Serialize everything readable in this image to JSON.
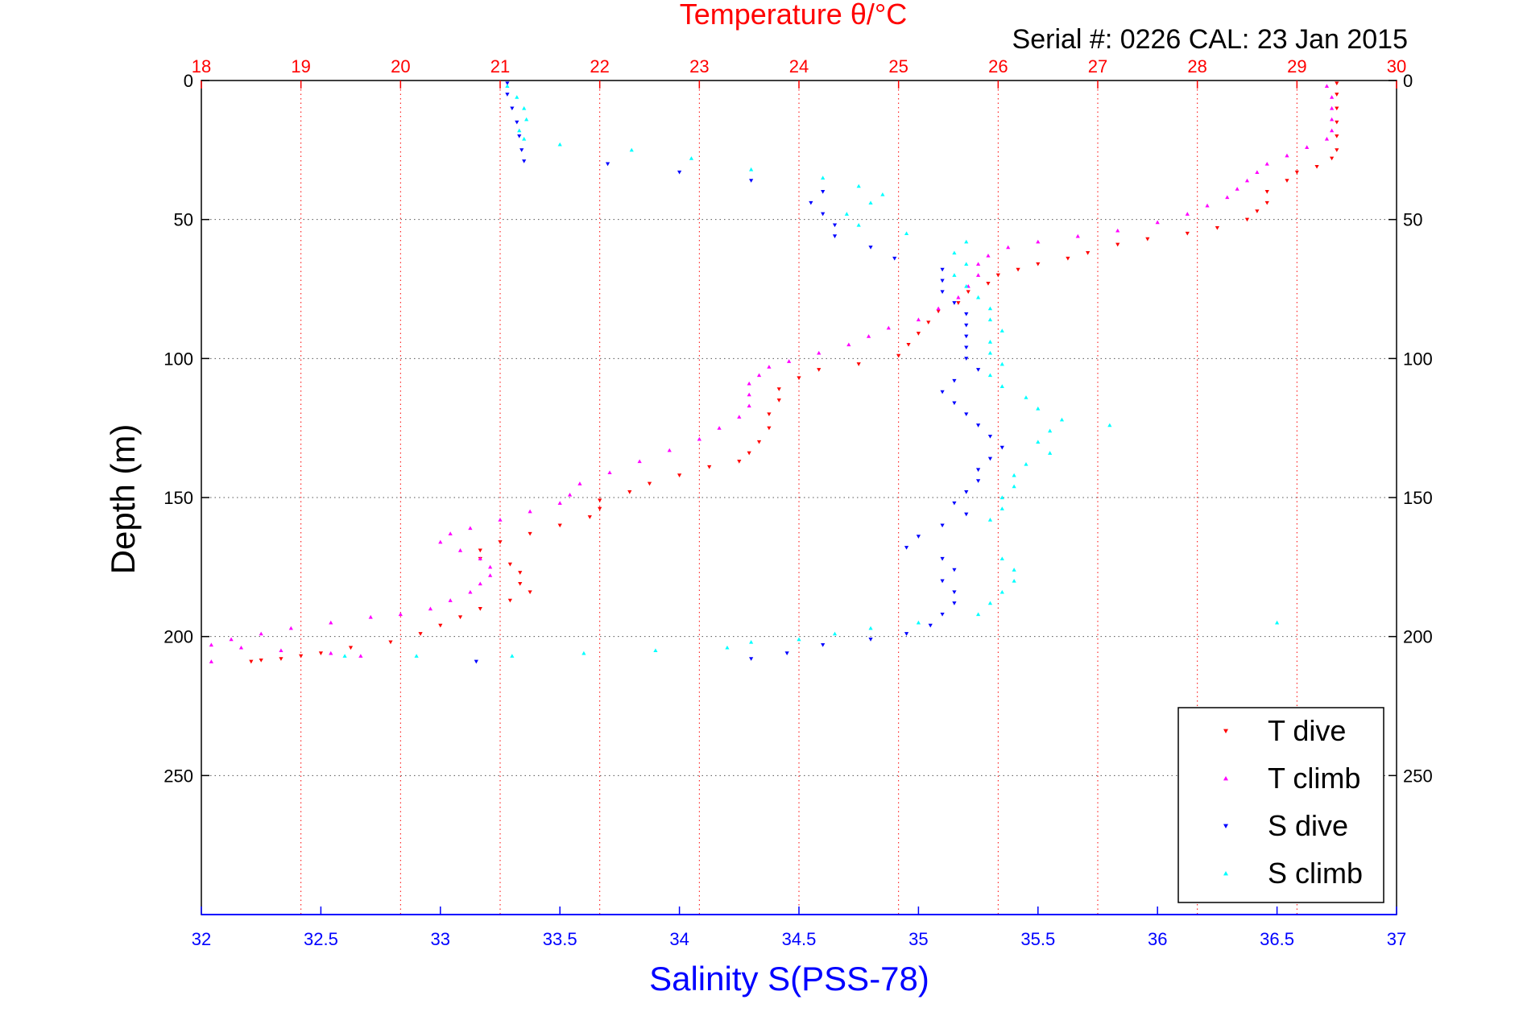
{
  "chart_data": {
    "type": "scatter",
    "title": "Temperature θ/°C",
    "subtitle": "Serial #: 0226  CAL: 23 Jan 2015",
    "ylabel": "Depth (m)",
    "x_top_label": "Temperature θ/°C",
    "x_bottom_label": "Salinity S(PSS-78)",
    "ylim": [
      0,
      300
    ],
    "y_reversed": true,
    "y_ticks": [
      0,
      50,
      100,
      150,
      200,
      250
    ],
    "temperature_lim": [
      18,
      30
    ],
    "temperature_ticks": [
      18,
      19,
      20,
      21,
      22,
      23,
      24,
      25,
      26,
      27,
      28,
      29,
      30
    ],
    "salinity_lim": [
      32,
      37
    ],
    "salinity_ticks": [
      32,
      32.5,
      33,
      33.5,
      34,
      34.5,
      35,
      35.5,
      36,
      36.5,
      37
    ],
    "grid": true,
    "legend_position": "bottom-right",
    "series": [
      {
        "name": "T dive",
        "axis": "temperature",
        "marker": "triangle-down",
        "color": "#ff0000",
        "points": [
          [
            29.4,
            1
          ],
          [
            29.4,
            5
          ],
          [
            29.4,
            10
          ],
          [
            29.4,
            15
          ],
          [
            29.4,
            20
          ],
          [
            29.4,
            25
          ],
          [
            29.35,
            28
          ],
          [
            29.2,
            31
          ],
          [
            29.0,
            33
          ],
          [
            28.9,
            36
          ],
          [
            28.7,
            40
          ],
          [
            28.7,
            44
          ],
          [
            28.6,
            47
          ],
          [
            28.5,
            50
          ],
          [
            28.2,
            53
          ],
          [
            27.9,
            55
          ],
          [
            27.5,
            57
          ],
          [
            27.2,
            59
          ],
          [
            26.9,
            62
          ],
          [
            26.7,
            64
          ],
          [
            26.4,
            66
          ],
          [
            26.2,
            68
          ],
          [
            26.0,
            70
          ],
          [
            25.9,
            73
          ],
          [
            25.7,
            76
          ],
          [
            25.6,
            80
          ],
          [
            25.4,
            83
          ],
          [
            25.3,
            87
          ],
          [
            25.2,
            91
          ],
          [
            25.1,
            95
          ],
          [
            25.0,
            99
          ],
          [
            24.6,
            102
          ],
          [
            24.2,
            104
          ],
          [
            24.0,
            107
          ],
          [
            23.8,
            111
          ],
          [
            23.8,
            115
          ],
          [
            23.7,
            120
          ],
          [
            23.7,
            125
          ],
          [
            23.6,
            130
          ],
          [
            23.5,
            134
          ],
          [
            23.4,
            137
          ],
          [
            23.1,
            139
          ],
          [
            22.8,
            142
          ],
          [
            22.5,
            145
          ],
          [
            22.3,
            148
          ],
          [
            22.0,
            151
          ],
          [
            22.0,
            154
          ],
          [
            21.9,
            157
          ],
          [
            21.6,
            160
          ],
          [
            21.3,
            163
          ],
          [
            21.0,
            166
          ],
          [
            20.8,
            169
          ],
          [
            20.8,
            172
          ],
          [
            21.1,
            174
          ],
          [
            21.2,
            177
          ],
          [
            21.2,
            181
          ],
          [
            21.3,
            184
          ],
          [
            21.1,
            187
          ],
          [
            20.8,
            190
          ],
          [
            20.6,
            193
          ],
          [
            20.4,
            196
          ],
          [
            20.2,
            199
          ],
          [
            19.9,
            202
          ],
          [
            19.5,
            204
          ],
          [
            19.2,
            206
          ],
          [
            19.0,
            207
          ],
          [
            18.8,
            208
          ],
          [
            18.6,
            208.5
          ],
          [
            18.5,
            209
          ]
        ]
      },
      {
        "name": "T climb",
        "axis": "temperature",
        "marker": "triangle-up",
        "color": "#ff00ff",
        "points": [
          [
            29.3,
            2
          ],
          [
            29.35,
            6
          ],
          [
            29.35,
            10
          ],
          [
            29.35,
            14
          ],
          [
            29.35,
            18
          ],
          [
            29.3,
            21
          ],
          [
            29.1,
            24
          ],
          [
            28.9,
            27
          ],
          [
            28.7,
            30
          ],
          [
            28.6,
            33
          ],
          [
            28.5,
            36
          ],
          [
            28.4,
            39
          ],
          [
            28.3,
            42
          ],
          [
            28.1,
            45
          ],
          [
            27.9,
            48
          ],
          [
            27.6,
            51
          ],
          [
            27.2,
            54
          ],
          [
            26.8,
            56
          ],
          [
            26.4,
            58
          ],
          [
            26.1,
            60
          ],
          [
            25.9,
            63
          ],
          [
            25.8,
            66
          ],
          [
            25.8,
            70
          ],
          [
            25.7,
            74
          ],
          [
            25.6,
            78
          ],
          [
            25.4,
            82
          ],
          [
            25.2,
            86
          ],
          [
            24.9,
            89
          ],
          [
            24.7,
            92
          ],
          [
            24.5,
            95
          ],
          [
            24.2,
            98
          ],
          [
            23.9,
            101
          ],
          [
            23.7,
            103
          ],
          [
            23.6,
            106
          ],
          [
            23.5,
            109
          ],
          [
            23.5,
            113
          ],
          [
            23.5,
            117
          ],
          [
            23.4,
            121
          ],
          [
            23.2,
            125
          ],
          [
            23.0,
            129
          ],
          [
            22.7,
            133
          ],
          [
            22.4,
            137
          ],
          [
            22.1,
            141
          ],
          [
            21.8,
            145
          ],
          [
            21.7,
            149
          ],
          [
            21.6,
            152
          ],
          [
            21.3,
            155
          ],
          [
            21.0,
            158
          ],
          [
            20.7,
            161
          ],
          [
            20.5,
            163
          ],
          [
            20.4,
            166
          ],
          [
            20.6,
            169
          ],
          [
            20.8,
            172
          ],
          [
            20.9,
            175
          ],
          [
            20.9,
            178
          ],
          [
            20.8,
            181
          ],
          [
            20.7,
            184
          ],
          [
            20.5,
            187
          ],
          [
            20.3,
            190
          ],
          [
            20.0,
            192
          ],
          [
            19.7,
            193
          ],
          [
            19.3,
            195
          ],
          [
            18.9,
            197
          ],
          [
            18.6,
            199
          ],
          [
            18.3,
            201
          ],
          [
            18.1,
            203
          ],
          [
            18.4,
            204
          ],
          [
            18.8,
            205
          ],
          [
            19.3,
            206
          ],
          [
            19.6,
            207
          ],
          [
            18.1,
            209
          ]
        ]
      },
      {
        "name": "S dive",
        "axis": "salinity",
        "marker": "triangle-down",
        "color": "#0000ff",
        "points": [
          [
            33.28,
            1
          ],
          [
            33.28,
            5
          ],
          [
            33.3,
            10
          ],
          [
            33.32,
            15
          ],
          [
            33.33,
            20
          ],
          [
            33.34,
            25
          ],
          [
            33.35,
            29
          ],
          [
            33.7,
            30
          ],
          [
            34.0,
            33
          ],
          [
            34.3,
            36
          ],
          [
            34.6,
            40
          ],
          [
            34.55,
            44
          ],
          [
            34.6,
            48
          ],
          [
            34.65,
            52
          ],
          [
            34.65,
            56
          ],
          [
            34.8,
            60
          ],
          [
            34.9,
            64
          ],
          [
            35.1,
            68
          ],
          [
            35.1,
            72
          ],
          [
            35.1,
            76
          ],
          [
            35.15,
            80
          ],
          [
            35.2,
            84
          ],
          [
            35.2,
            88
          ],
          [
            35.2,
            92
          ],
          [
            35.2,
            96
          ],
          [
            35.2,
            100
          ],
          [
            35.25,
            104
          ],
          [
            35.15,
            108
          ],
          [
            35.1,
            112
          ],
          [
            35.15,
            116
          ],
          [
            35.2,
            120
          ],
          [
            35.25,
            124
          ],
          [
            35.3,
            128
          ],
          [
            35.35,
            132
          ],
          [
            35.3,
            136
          ],
          [
            35.25,
            140
          ],
          [
            35.25,
            144
          ],
          [
            35.2,
            148
          ],
          [
            35.15,
            152
          ],
          [
            35.2,
            156
          ],
          [
            35.1,
            160
          ],
          [
            35.0,
            164
          ],
          [
            34.95,
            168
          ],
          [
            35.1,
            172
          ],
          [
            35.15,
            176
          ],
          [
            35.1,
            180
          ],
          [
            35.15,
            184
          ],
          [
            35.15,
            188
          ],
          [
            35.1,
            192
          ],
          [
            35.05,
            196
          ],
          [
            34.95,
            199
          ],
          [
            34.8,
            201
          ],
          [
            34.6,
            203
          ],
          [
            34.45,
            206
          ],
          [
            34.3,
            208
          ],
          [
            33.15,
            209
          ]
        ]
      },
      {
        "name": "S climb",
        "axis": "salinity",
        "marker": "triangle-up",
        "color": "#00ffff",
        "points": [
          [
            33.28,
            2
          ],
          [
            33.32,
            6
          ],
          [
            33.35,
            10
          ],
          [
            33.36,
            14
          ],
          [
            33.33,
            18
          ],
          [
            33.35,
            21
          ],
          [
            33.5,
            23
          ],
          [
            33.8,
            25
          ],
          [
            34.05,
            28
          ],
          [
            34.3,
            32
          ],
          [
            34.6,
            35
          ],
          [
            34.75,
            38
          ],
          [
            34.85,
            41
          ],
          [
            34.8,
            44
          ],
          [
            34.7,
            48
          ],
          [
            34.75,
            52
          ],
          [
            34.95,
            55
          ],
          [
            35.2,
            58
          ],
          [
            35.15,
            62
          ],
          [
            35.2,
            66
          ],
          [
            35.15,
            70
          ],
          [
            35.2,
            74
          ],
          [
            35.25,
            78
          ],
          [
            35.3,
            82
          ],
          [
            35.3,
            86
          ],
          [
            35.35,
            90
          ],
          [
            35.3,
            94
          ],
          [
            35.3,
            98
          ],
          [
            35.35,
            102
          ],
          [
            35.3,
            106
          ],
          [
            35.35,
            110
          ],
          [
            35.45,
            114
          ],
          [
            35.5,
            118
          ],
          [
            35.6,
            122
          ],
          [
            35.55,
            126
          ],
          [
            35.5,
            130
          ],
          [
            35.55,
            134
          ],
          [
            35.45,
            138
          ],
          [
            35.4,
            142
          ],
          [
            35.4,
            146
          ],
          [
            35.35,
            150
          ],
          [
            35.35,
            154
          ],
          [
            35.3,
            158
          ],
          [
            35.35,
            172
          ],
          [
            35.4,
            176
          ],
          [
            35.4,
            180
          ],
          [
            35.35,
            184
          ],
          [
            35.3,
            188
          ],
          [
            35.25,
            192
          ],
          [
            35.0,
            195
          ],
          [
            34.8,
            197
          ],
          [
            34.65,
            199
          ],
          [
            34.5,
            201
          ],
          [
            34.3,
            202
          ],
          [
            34.2,
            204
          ],
          [
            33.9,
            205
          ],
          [
            33.6,
            206
          ],
          [
            33.3,
            207
          ],
          [
            32.9,
            207
          ],
          [
            32.6,
            207
          ],
          [
            36.5,
            195
          ],
          [
            35.8,
            124
          ]
        ]
      }
    ]
  }
}
